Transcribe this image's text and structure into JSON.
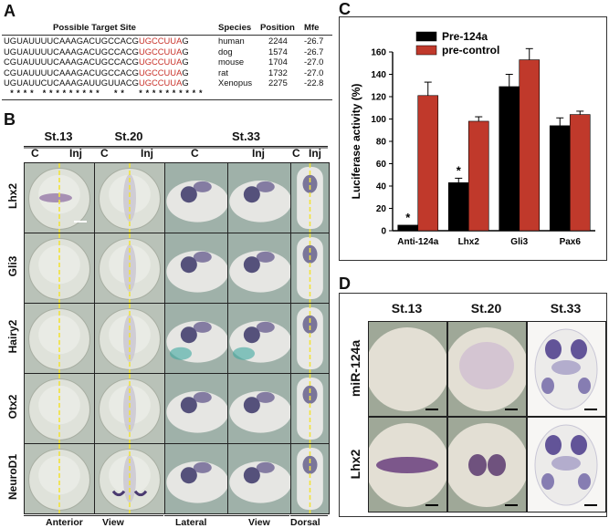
{
  "panels": {
    "a": {
      "letter": "A",
      "header": {
        "site": "Possible  Target  Site",
        "species": "Species",
        "position": "Position",
        "mfe": "Mfe"
      },
      "rows": [
        {
          "seq_black": "UGUAUUUUCAAAGACUGCCACG",
          "seq_red": "UGCCUUA",
          "seq_end": "G",
          "species": "human",
          "position": "2244",
          "mfe": "-26.7"
        },
        {
          "seq_black": "UGUAUUUUCAAAGACUGCCACG",
          "seq_red": "UGCCUUA",
          "seq_end": "G",
          "species": "dog",
          "position": "1574",
          "mfe": "-26.7"
        },
        {
          "seq_black": "CGUAUUUUCAAAGACUGCCACG",
          "seq_red": "UGCCUUA",
          "seq_end": "G",
          "species": "mouse",
          "position": "1704",
          "mfe": "-27.0"
        },
        {
          "seq_black": "CGUAUUUUCAAAGACUGCCACG",
          "seq_red": "UGCCUUA",
          "seq_end": "G",
          "species": "rat",
          "position": "1732",
          "mfe": "-27.0"
        },
        {
          "seq_black": "UGUAUUCUCAAAGAUUGUUACG",
          "seq_red": "UGCCUUA",
          "seq_end": "G",
          "species": "Xenopus",
          "position": "2275",
          "mfe": "-22.8"
        }
      ],
      "stars": "  *  *  *  *     *  *  *  *  *  *  *  *  *        *  *        *  *  *  *  *  *  *  *  *  *"
    },
    "b": {
      "letter": "B",
      "stages": [
        "St.13",
        "St.20",
        "St.33"
      ],
      "ci": {
        "c": "C",
        "inj": "Inj"
      },
      "genes": [
        "Lhx2",
        "Gli3",
        "Hairy2",
        "Otx2",
        "NeuroD1"
      ],
      "views": {
        "anterior": "Anterior",
        "view1": "View",
        "lateral": "Lateral",
        "view2": "View",
        "dorsal": "Dorsal"
      }
    },
    "c": {
      "letter": "C",
      "legend_pre124a": "Pre-124a",
      "legend_precontrol": "pre-control"
    },
    "d": {
      "letter": "D",
      "stages": [
        "St.13",
        "St.20",
        "St.33"
      ],
      "rows": [
        "miR-124a",
        "Lhx2"
      ]
    }
  },
  "colors": {
    "pre124a": "#000000",
    "precontrol": "#c0392b",
    "red_seq": "#c8322a",
    "dash": "#f0e040"
  },
  "chart_data": {
    "type": "bar",
    "categories": [
      "Anti-124a",
      "Lhx2",
      "Gli3",
      "Pax6"
    ],
    "series": [
      {
        "name": "Pre-124a",
        "values": [
          5,
          43,
          129,
          94
        ],
        "errors": [
          0,
          4,
          11,
          7
        ]
      },
      {
        "name": "pre-control",
        "values": [
          121,
          98,
          153,
          104
        ],
        "errors": [
          12,
          4,
          10,
          3
        ]
      }
    ],
    "significance": [
      "*",
      "*",
      "",
      ""
    ],
    "ylabel": "Luciferase activity  (%)",
    "ylim": [
      0,
      160
    ],
    "yticks": [
      "0",
      "20",
      "40",
      "60",
      "80",
      "100",
      "120",
      "140",
      "160"
    ]
  }
}
